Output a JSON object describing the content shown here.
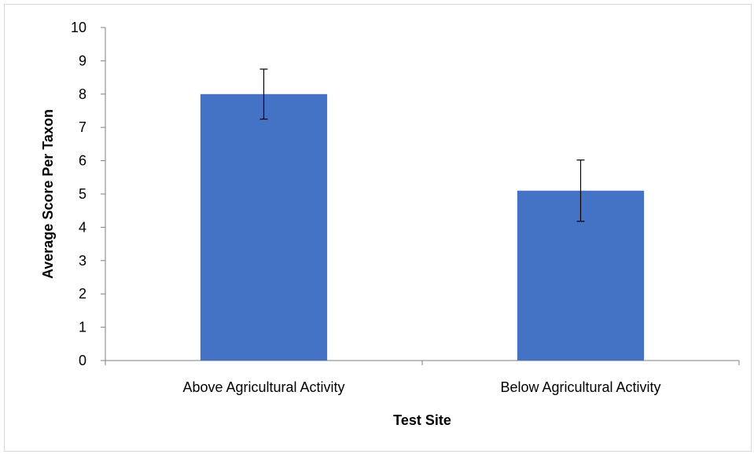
{
  "chart_data": {
    "type": "bar",
    "title": "",
    "xlabel": "Test Site",
    "ylabel": "Average Score Per Taxon",
    "categories": [
      "Above Agricultural Activity",
      "Below Agricultural Activity"
    ],
    "series": [
      {
        "values": [
          8.0,
          5.1
        ],
        "error": [
          0.75,
          0.92
        ]
      }
    ],
    "ylim": [
      0,
      10
    ],
    "yticks": [
      "0",
      "1",
      "2",
      "3",
      "4",
      "5",
      "6",
      "7",
      "8",
      "9",
      "10"
    ],
    "grid": false,
    "legend": "none",
    "colors": {
      "bar": "#4472C4",
      "axis": "#7f7f7f",
      "error_bar": "#000000"
    }
  }
}
